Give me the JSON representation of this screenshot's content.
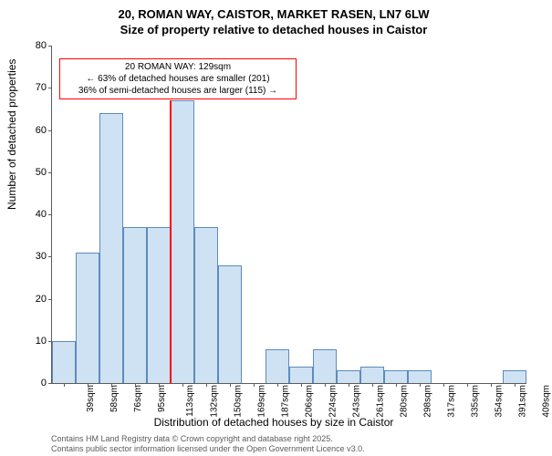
{
  "title_line1": "20, ROMAN WAY, CAISTOR, MARKET RASEN, LN7 6LW",
  "title_line2": "Size of property relative to detached houses in Caistor",
  "y_axis_label": "Number of detached properties",
  "x_axis_label": "Distribution of detached houses by size in Caistor",
  "histogram": {
    "type": "histogram",
    "x_categories": [
      "39sqm",
      "58sqm",
      "76sqm",
      "95sqm",
      "113sqm",
      "132sqm",
      "150sqm",
      "169sqm",
      "187sqm",
      "206sqm",
      "224sqm",
      "243sqm",
      "261sqm",
      "280sqm",
      "298sqm",
      "317sqm",
      "335sqm",
      "354sqm",
      "391sqm",
      "409sqm"
    ],
    "values": [
      10,
      31,
      64,
      37,
      37,
      67,
      37,
      28,
      0,
      8,
      4,
      8,
      3,
      4,
      3,
      3,
      0,
      0,
      0,
      3
    ],
    "bar_fill": "#cfe2f3",
    "bar_stroke": "#5b8bbd",
    "ylim": [
      0,
      80
    ],
    "ytick_step": 10,
    "marker": {
      "position_index": 5.0,
      "color": "#ff0000",
      "height_value": 67
    },
    "annotation": {
      "border_color": "#ff0000",
      "line1": "20 ROMAN WAY: 129sqm",
      "line2": "← 63% of detached houses are smaller (201)",
      "line3": "36% of semi-detached houses are larger (115) →"
    },
    "axis_color": "#5b5b5b",
    "tick_fontsize": 10,
    "label_fontsize": 12,
    "title_fontsize": 13
  },
  "footer_line1": "Contains HM Land Registry data © Crown copyright and database right 2025.",
  "footer_line2": "Contains public sector information licensed under the Open Government Licence v3.0."
}
